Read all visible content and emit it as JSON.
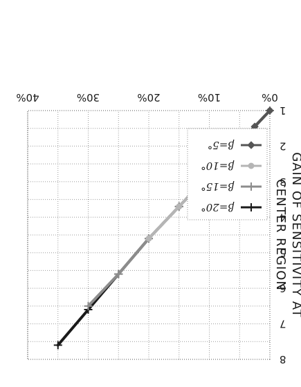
{
  "chart_data": {
    "type": "line",
    "title": "",
    "xlabel": "",
    "ylabel_lines": [
      "GAIN OF SENSITIVITY AT",
      "CENTER REGION"
    ],
    "x_ticks": [
      "0%",
      "10%",
      "20%",
      "30%",
      "40%"
    ],
    "y_ticks": [
      "1",
      "2",
      "3",
      "4",
      "5",
      "6",
      "7",
      "8"
    ],
    "xlim": [
      0,
      40
    ],
    "ylim": [
      1,
      8
    ],
    "grid": true,
    "legend_position": "bottom-left",
    "series": [
      {
        "name": "β=20°",
        "color": "#1a1a1a",
        "marker": "plus",
        "x": [
          0,
          5,
          10,
          15,
          20,
          25,
          30,
          35
        ],
        "y": [
          1.0,
          1.9,
          2.8,
          3.7,
          4.6,
          5.6,
          6.6,
          7.6
        ]
      },
      {
        "name": "β=15°",
        "color": "#8c8c8c",
        "marker": "plus",
        "x": [
          0,
          5,
          10,
          15,
          20,
          25,
          30
        ],
        "y": [
          1.0,
          1.9,
          2.8,
          3.7,
          4.6,
          5.6,
          6.5
        ]
      },
      {
        "name": "β=10°",
        "color": "#b5b5b5",
        "marker": "circle",
        "x": [
          0,
          5,
          10,
          15,
          20
        ],
        "y": [
          1.0,
          1.9,
          2.8,
          3.7,
          4.6
        ]
      },
      {
        "name": "β=5°",
        "color": "#555555",
        "marker": "diamond",
        "x": [
          0,
          2.5,
          5,
          7.5,
          10
        ],
        "y": [
          1.0,
          1.45,
          1.9,
          2.35,
          2.8
        ]
      }
    ]
  }
}
